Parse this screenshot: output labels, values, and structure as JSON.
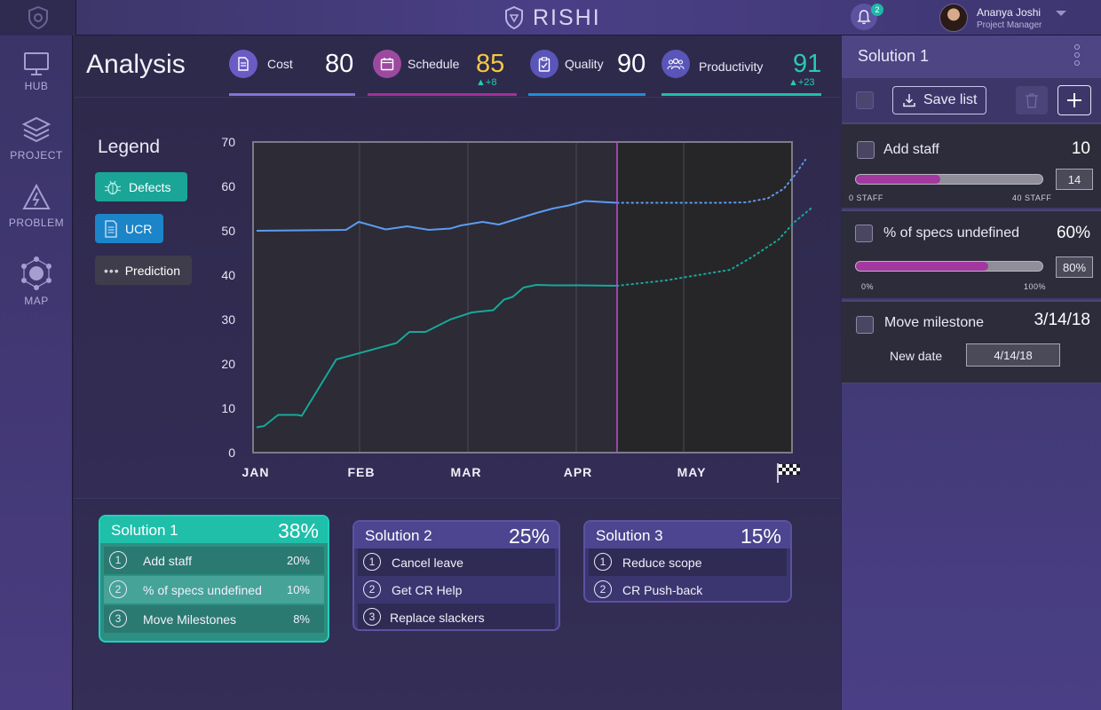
{
  "app": {
    "brand": "RISHI",
    "notifications_count": "2",
    "user": {
      "name": "Ananya Joshi",
      "role": "Project Manager"
    }
  },
  "nav": {
    "items": [
      {
        "label": "HUB",
        "icon": "monitor-icon"
      },
      {
        "label": "PROJECT",
        "icon": "layers-icon"
      },
      {
        "label": "PROBLEM",
        "icon": "warning-icon"
      },
      {
        "label": "MAP",
        "icon": "network-icon"
      }
    ]
  },
  "analysis": {
    "title": "Analysis",
    "metrics": [
      {
        "label": "Cost",
        "value": "80",
        "delta": "",
        "icon": "document-icon",
        "color": "#ffffff",
        "line_color": "#7f74d9"
      },
      {
        "label": "Schedule",
        "value": "85",
        "delta": "+8",
        "icon": "calendar-icon",
        "color": "#f5c842",
        "line_color": "#a52f9c"
      },
      {
        "label": "Quality",
        "value": "90",
        "delta": "",
        "icon": "clipboard-icon",
        "color": "#ffffff",
        "line_color": "#1f8fd6"
      },
      {
        "label": "Productivity",
        "value": "91",
        "delta": "+23",
        "icon": "people-icon",
        "color": "#29c9b0",
        "line_color": "#1fbfab"
      }
    ]
  },
  "legend": {
    "title": "Legend",
    "items": [
      {
        "label": "Defects",
        "icon": "bug-icon",
        "color": "#1aa597"
      },
      {
        "label": "UCR",
        "icon": "document-icon",
        "color": "#1c84c9"
      },
      {
        "label": "Prediction",
        "icon": "dots-icon",
        "color": "#3f3d4c"
      }
    ]
  },
  "chart_data": {
    "type": "line",
    "categories": [
      "JAN",
      "FEB",
      "MAR",
      "APR",
      "MAY"
    ],
    "ylim": [
      0,
      70
    ],
    "yticks": [
      "0",
      "10",
      "20",
      "30",
      "40",
      "50",
      "60",
      "70"
    ],
    "end_marker": "finish-flag-icon",
    "series": [
      {
        "color": "#5b9cf0",
        "actual": [
          [
            0,
            50
          ],
          [
            0.83,
            50.2
          ],
          [
            0.95,
            52
          ],
          [
            1.2,
            50.3
          ],
          [
            1.4,
            51
          ],
          [
            1.6,
            50.2
          ],
          [
            1.8,
            50.5
          ],
          [
            1.9,
            51.2
          ],
          [
            2.1,
            52
          ],
          [
            2.25,
            51.4
          ],
          [
            2.6,
            54
          ],
          [
            2.75,
            55
          ],
          [
            2.9,
            55.7
          ],
          [
            3.05,
            56.7
          ],
          [
            3.35,
            56.3
          ]
        ],
        "prediction": [
          [
            3.35,
            56.3
          ],
          [
            3.9,
            56.3
          ],
          [
            4.3,
            56.3
          ],
          [
            4.55,
            56.4
          ],
          [
            4.75,
            57.3
          ],
          [
            4.9,
            59.5
          ],
          [
            5.0,
            62.5
          ],
          [
            5.1,
            66
          ]
        ]
      },
      {
        "color": "#17a89a",
        "actual": [
          [
            0,
            5.7
          ],
          [
            0.07,
            6
          ],
          [
            0.2,
            8.5
          ],
          [
            0.38,
            8.5
          ],
          [
            0.42,
            8.3
          ],
          [
            0.74,
            21
          ],
          [
            1.3,
            24.7
          ],
          [
            1.42,
            27.2
          ],
          [
            1.57,
            27.2
          ],
          [
            1.8,
            30
          ],
          [
            2.0,
            31.6
          ],
          [
            2.2,
            32.1
          ],
          [
            2.3,
            34.5
          ],
          [
            2.38,
            35.1
          ],
          [
            2.48,
            37.2
          ],
          [
            2.6,
            37.8
          ],
          [
            2.75,
            37.7
          ],
          [
            3.0,
            37.7
          ],
          [
            3.35,
            37.6
          ]
        ],
        "prediction": [
          [
            3.35,
            37.6
          ],
          [
            3.8,
            38.8
          ],
          [
            4.2,
            40.4
          ],
          [
            4.4,
            41.2
          ],
          [
            4.6,
            44
          ],
          [
            4.85,
            48
          ],
          [
            5.0,
            52
          ],
          [
            5.15,
            55
          ]
        ]
      }
    ]
  },
  "solutions": [
    {
      "title": "Solution 1",
      "pct": "38%",
      "items": [
        {
          "num": "1",
          "label": "Add staff",
          "value": "20%"
        },
        {
          "num": "2",
          "label": "% of specs undefined",
          "value": "10%"
        },
        {
          "num": "3",
          "label": "Move Milestones",
          "value": "8%"
        }
      ]
    },
    {
      "title": "Solution 2",
      "pct": "25%",
      "items": [
        {
          "num": "1",
          "label": "Cancel leave",
          "value": ""
        },
        {
          "num": "2",
          "label": "Get CR Help",
          "value": ""
        },
        {
          "num": "3",
          "label": "Replace slackers",
          "value": ""
        }
      ]
    },
    {
      "title": "Solution 3",
      "pct": "15%",
      "items": [
        {
          "num": "1",
          "label": "Reduce scope",
          "value": ""
        },
        {
          "num": "2",
          "label": "CR Push-back",
          "value": ""
        }
      ]
    }
  ],
  "panel": {
    "title": "Solution 1",
    "save_label": "Save list",
    "add_staff": {
      "label": "Add staff",
      "value": "10",
      "slider_fraction": 0.45,
      "min_label": "0 STAFF",
      "max_label": "40 STAFF",
      "input_value": "14"
    },
    "specs": {
      "label": "% of specs undefined",
      "value": "60%",
      "slider_fraction": 0.71,
      "min_label": "0%",
      "max_label": "100%",
      "input_value": "80%"
    },
    "milestone": {
      "label": "Move milestone",
      "value": "3/14/18",
      "new_date_label": "New date",
      "new_date_value": "4/14/18"
    }
  }
}
